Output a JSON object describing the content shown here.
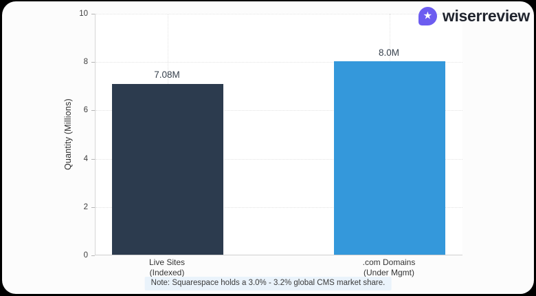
{
  "brand": {
    "name": "wiserreview",
    "icon": "star-icon",
    "icon_glyph": "★",
    "icon_bg": "#6C5CF0"
  },
  "chart_data": {
    "type": "bar",
    "title": "",
    "xlabel": "",
    "ylabel": "Quantity (Millions)",
    "ylim": [
      0,
      10
    ],
    "yticks": [
      0,
      2,
      4,
      6,
      8,
      10
    ],
    "grid": "dotted horizontal gridlines at each y tick; dotted vertical guide at each bar center",
    "legend": "none",
    "categories": [
      "Live Sites (Indexed)",
      ".com Domains (Under Mgmt)"
    ],
    "category_lines": [
      [
        "Live Sites",
        "(Indexed)"
      ],
      [
        ".com Domains",
        "(Under Mgmt)"
      ]
    ],
    "values": [
      7.08,
      8.0
    ],
    "value_labels": [
      "7.08M",
      "8.0M"
    ],
    "bar_colors": [
      "#2C3B4E",
      "#3498DB"
    ],
    "note": "Note: Squarespace holds a 3.0% - 3.2% global CMS market share.",
    "note_bg": "#EAF3FB"
  }
}
